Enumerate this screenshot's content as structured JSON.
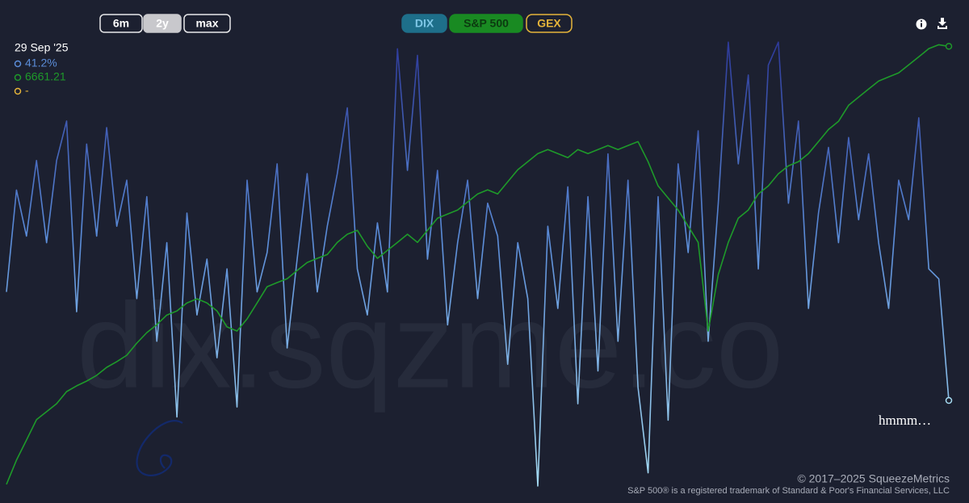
{
  "chart_data": {
    "type": "line",
    "range_buttons": [
      "6m",
      "2y",
      "max"
    ],
    "active_button": 1,
    "readout": {
      "date": "29 Sep '25",
      "texts": [
        "41.2%",
        "6661.21",
        "-"
      ]
    },
    "hidden_series": [
      {
        "name": "GEX",
        "color": "#e5b43a"
      }
    ],
    "ylim": [
      38.4,
      52.4
    ],
    "y2lim": [
      4155,
      6740
    ],
    "series": [
      {
        "name": "DIX",
        "color": "#5b8dd9",
        "values": [
          44.5,
          47.6,
          46.2,
          48.5,
          46.0,
          48.5,
          49.7,
          43.9,
          49.0,
          46.2,
          49.5,
          46.5,
          47.9,
          44.3,
          47.4,
          43.0,
          46.0,
          40.7,
          46.9,
          43.8,
          45.5,
          42.5,
          45.2,
          41.0,
          47.9,
          44.5,
          45.7,
          48.4,
          42.8,
          45.5,
          48.1,
          44.5,
          46.5,
          48.1,
          50.1,
          45.2,
          43.8,
          46.6,
          44.5,
          51.9,
          48.2,
          51.7,
          45.5,
          48.2,
          43.5,
          46.0,
          47.9,
          44.3,
          47.2,
          46.2,
          42.3,
          46.0,
          44.3,
          38.6,
          46.5,
          44.0,
          47.7,
          41.1,
          47.4,
          42.1,
          48.7,
          43.0,
          47.9,
          41.6,
          39.0,
          47.4,
          40.6,
          48.4,
          45.7,
          49.4,
          43.0,
          47.2,
          52.1,
          48.4,
          51.1,
          45.2,
          51.4,
          52.1,
          47.2,
          49.7,
          44.0,
          46.9,
          48.9,
          46.0,
          49.2,
          46.7,
          48.7,
          46.0,
          44.0,
          47.9,
          46.7,
          49.8,
          45.2,
          44.9,
          41.2
        ]
      },
      {
        "name": "S&P 500",
        "color": "#1e9a2a",
        "axis": "y2",
        "values": [
          4201,
          4337,
          4450,
          4564,
          4609,
          4654,
          4722,
          4754,
          4781,
          4813,
          4858,
          4890,
          4926,
          4994,
          5053,
          5098,
          5152,
          5175,
          5220,
          5243,
          5220,
          5175,
          5085,
          5062,
          5130,
          5220,
          5311,
          5334,
          5356,
          5402,
          5447,
          5470,
          5492,
          5560,
          5606,
          5628,
          5538,
          5470,
          5515,
          5560,
          5606,
          5560,
          5628,
          5696,
          5719,
          5742,
          5787,
          5832,
          5855,
          5832,
          5900,
          5968,
          6013,
          6059,
          6081,
          6059,
          6036,
          6081,
          6059,
          6081,
          6104,
          6081,
          6104,
          6126,
          6013,
          5877,
          5809,
          5742,
          5651,
          5560,
          5062,
          5379,
          5560,
          5696,
          5742,
          5832,
          5877,
          5945,
          5990,
          6013,
          6059,
          6126,
          6194,
          6240,
          6330,
          6376,
          6421,
          6466,
          6489,
          6512,
          6557,
          6602,
          6648,
          6670,
          6661.21
        ]
      }
    ]
  },
  "page": {
    "watermark": "dix.sqzme.co",
    "note": "hmmm…",
    "copyright": "© 2017–2025 SqueezeMetrics",
    "trademark": "S&P 500® is a registered trademark of Standard & Poor's Financial Services, LLC"
  }
}
